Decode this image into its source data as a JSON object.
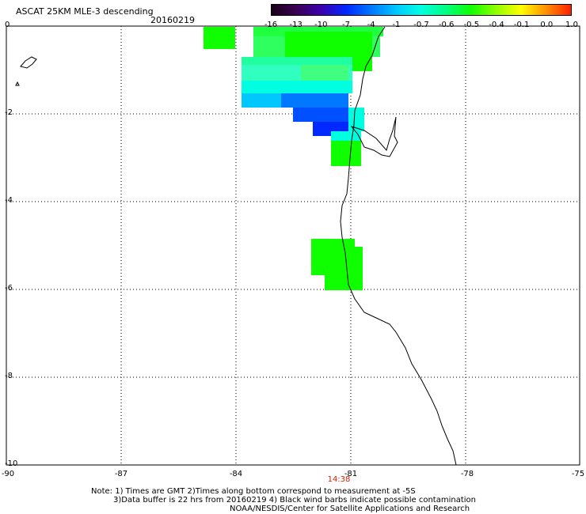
{
  "header": {
    "title": "ASCAT 25KM MLE-3 descending",
    "date": "20160219"
  },
  "colorbar": {
    "labels": [
      "-16",
      "-13",
      "-10",
      "-7",
      "-4",
      "-1",
      "-0.7",
      "-0.6",
      "-0.5",
      "-0.4",
      "-0.1",
      "0.0",
      "1.0"
    ],
    "colors": [
      "#1a0018",
      "#3a0052",
      "#3c00b0",
      "#0028ff",
      "#0078ff",
      "#00c8ff",
      "#00ffe0",
      "#00ff80",
      "#10ff00",
      "#90ff00",
      "#ffff00",
      "#ff9000",
      "#ff2000"
    ]
  },
  "axes": {
    "lat_labels": [
      "0",
      "-2",
      "-4",
      "-6",
      "-8",
      "-10"
    ],
    "lon_labels": [
      "-90",
      "-87",
      "-84",
      "-81",
      "-78",
      "-75"
    ],
    "time_label": "14:38"
  },
  "notes": {
    "line1": "Note: 1) Times are GMT 2)Times along bottom correspond to measurement at -5S",
    "line2": "3)Data buffer is 22 hrs from 20160219 4) Black wind barbs indicate possible contamination",
    "line3": "NOAA/NESDIS/Center for Satellite Applications and Research"
  },
  "map": {
    "lat_range": [
      0,
      -10
    ],
    "lon_range": [
      -90,
      -75
    ],
    "grid": "dotted",
    "coastline_color": "#000000",
    "swath_colors": {
      "green": "#10ff00",
      "light_green": "#40ff80",
      "cyan": "#00ffe0",
      "light_blue": "#00c8ff",
      "blue": "#0078ff",
      "dark_blue": "#0028ff"
    }
  }
}
